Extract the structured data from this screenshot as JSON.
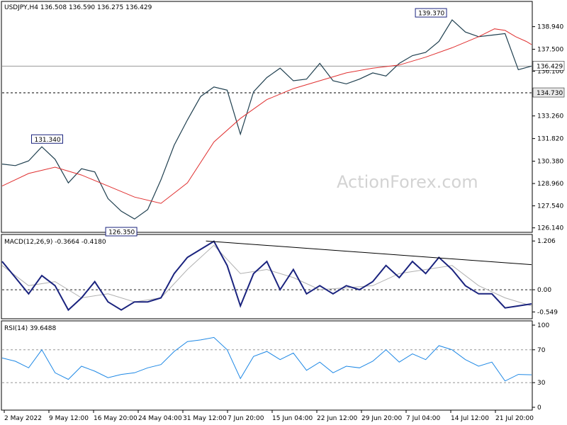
{
  "chart_data": [
    {
      "type": "line",
      "title": "USDJPY,H4",
      "ohlc": {
        "open": "136.508",
        "high": "136.590",
        "low": "136.275",
        "close": "136.429"
      },
      "y_ticks": [
        "138.940",
        "137.500",
        "136.100",
        "133.260",
        "131.820",
        "130.380",
        "128.960",
        "127.540",
        "126.140"
      ],
      "ylim": [
        125.9,
        140.5
      ],
      "x_ticks": [
        "2 May 2022",
        "9 May 12:00",
        "16 May 20:00",
        "24 May 04:00",
        "31 May 12:00",
        "7 Jun 20:00",
        "15 Jun 04:00",
        "22 Jun 12:00",
        "29 Jun 20:00",
        "7 Jul 04:00",
        "14 Jul 12:00",
        "21 Jul 20:00"
      ],
      "annotations": [
        {
          "label": "139.370",
          "x": 162,
          "y": 139.37
        },
        {
          "label": "131.340",
          "x": 17,
          "y": 131.34
        },
        {
          "label": "126.350",
          "x": 45,
          "y": 126.35
        }
      ],
      "horizontal_lines": [
        {
          "label": "134.730",
          "value": 134.73,
          "style": "dashed"
        },
        {
          "label": "136.429",
          "value": 136.429,
          "style": "solid"
        }
      ],
      "watermark": "ActionForex.com",
      "series": [
        {
          "name": "USDJPY",
          "color": "#1f3f4f",
          "x": [
            0,
            5,
            10,
            15,
            20,
            25,
            30,
            35,
            40,
            45,
            50,
            55,
            60,
            65,
            70,
            75,
            80,
            85,
            90,
            95,
            100,
            105,
            110,
            115,
            120,
            125,
            130,
            135,
            140,
            145,
            150,
            155,
            160,
            165,
            170,
            175,
            180,
            185,
            190,
            195,
            200
          ],
          "y": [
            130.2,
            130.1,
            130.4,
            131.3,
            130.5,
            129.0,
            129.9,
            129.7,
            128.0,
            127.2,
            126.7,
            127.3,
            129.2,
            131.4,
            133.0,
            134.5,
            135.1,
            134.9,
            132.1,
            134.8,
            135.7,
            136.3,
            135.5,
            135.6,
            136.6,
            135.5,
            135.3,
            135.6,
            136.0,
            135.8,
            136.6,
            137.1,
            137.3,
            138.0,
            139.37,
            138.6,
            138.3,
            138.4,
            138.5,
            136.2,
            136.43
          ]
        },
        {
          "name": "MA",
          "color": "#e03030",
          "x": [
            0,
            10,
            20,
            30,
            40,
            50,
            60,
            70,
            80,
            90,
            100,
            110,
            120,
            130,
            140,
            150,
            160,
            170,
            180,
            186,
            190,
            194,
            198,
            200
          ],
          "y": [
            128.8,
            129.6,
            130.0,
            129.5,
            128.8,
            128.1,
            127.7,
            129.0,
            131.6,
            133.1,
            134.3,
            135.0,
            135.5,
            136.0,
            136.3,
            136.5,
            137.0,
            137.6,
            138.3,
            138.8,
            138.7,
            138.3,
            138.0,
            137.8
          ]
        }
      ]
    },
    {
      "type": "line",
      "title": "MACD(12,26,9) -0.3664 -0.4180",
      "y_ticks": [
        "1.206",
        "0.00",
        "-0.549"
      ],
      "ylim": [
        -0.7,
        1.35
      ],
      "series": [
        {
          "name": "MACD",
          "color": "#1a237e",
          "x": [
            0,
            5,
            10,
            15,
            20,
            25,
            30,
            35,
            40,
            45,
            50,
            55,
            60,
            65,
            70,
            75,
            80,
            85,
            90,
            95,
            100,
            105,
            110,
            115,
            120,
            125,
            130,
            135,
            140,
            145,
            150,
            155,
            160,
            165,
            170,
            175,
            180,
            185,
            190,
            195,
            200
          ],
          "y": [
            0.7,
            0.3,
            -0.1,
            0.35,
            0.1,
            -0.5,
            -0.2,
            0.2,
            -0.3,
            -0.5,
            -0.3,
            -0.3,
            -0.2,
            0.4,
            0.8,
            1.0,
            1.2,
            0.6,
            -0.4,
            0.4,
            0.7,
            0.0,
            0.5,
            -0.1,
            0.1,
            -0.1,
            0.1,
            0.0,
            0.2,
            0.6,
            0.3,
            0.7,
            0.4,
            0.8,
            0.5,
            0.1,
            -0.1,
            -0.1,
            -0.45,
            -0.4,
            -0.35
          ]
        },
        {
          "name": "Signal",
          "color": "#b0b0b0",
          "x": [
            0,
            10,
            20,
            30,
            40,
            50,
            60,
            70,
            80,
            90,
            100,
            110,
            120,
            130,
            140,
            150,
            160,
            170,
            180,
            190,
            200
          ],
          "y": [
            0.6,
            0.1,
            0.2,
            -0.2,
            -0.1,
            -0.3,
            -0.2,
            0.5,
            1.1,
            0.4,
            0.5,
            0.3,
            0.0,
            0.05,
            0.1,
            0.4,
            0.5,
            0.6,
            0.1,
            -0.2,
            -0.4
          ]
        }
      ],
      "trendline": {
        "x": [
          77,
          200
        ],
        "y": [
          1.206,
          0.62
        ]
      }
    },
    {
      "type": "line",
      "title": "RSI(14) 39.6488",
      "y_ticks": [
        "100",
        "70",
        "30",
        "0"
      ],
      "ylim": [
        0,
        100
      ],
      "series": [
        {
          "name": "RSI",
          "color": "#1e88e5",
          "x": [
            0,
            5,
            10,
            15,
            20,
            25,
            30,
            35,
            40,
            45,
            50,
            55,
            60,
            65,
            70,
            75,
            80,
            85,
            90,
            95,
            100,
            105,
            110,
            115,
            120,
            125,
            130,
            135,
            140,
            145,
            150,
            155,
            160,
            165,
            170,
            175,
            180,
            185,
            190,
            195,
            200
          ],
          "y": [
            60,
            56,
            48,
            70,
            42,
            34,
            50,
            44,
            36,
            40,
            42,
            48,
            52,
            68,
            80,
            82,
            85,
            70,
            35,
            62,
            68,
            58,
            66,
            45,
            55,
            42,
            50,
            48,
            56,
            70,
            55,
            65,
            58,
            75,
            70,
            58,
            50,
            55,
            32,
            40,
            39.6
          ]
        }
      ]
    }
  ]
}
